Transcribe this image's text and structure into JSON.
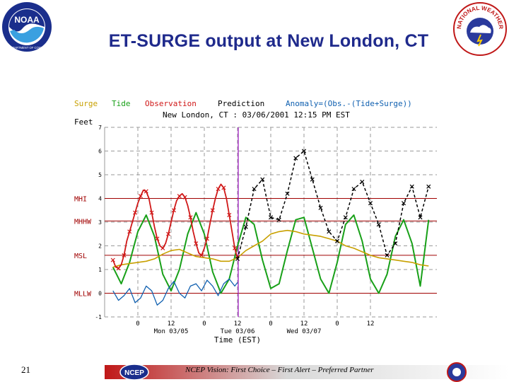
{
  "slide": {
    "title": "ET-SURGE output at New London, CT",
    "number": "21",
    "footer": "NCEP Vision: First Choice – First Alert – Preferred Partner",
    "logos": {
      "noaa": "NOAA",
      "noaa_ring": "U.S. DEPARTMENT OF COMMERCE",
      "nws_ring": "NATIONAL WEATHER SERVICE",
      "ncep": "NCEP"
    }
  },
  "colors": {
    "title": "#1f2a8c",
    "surge": "#c8a000",
    "tide": "#18a018",
    "observation": "#d01818",
    "prediction": "#000000",
    "anomaly": "#1060b0",
    "datum_line": "#a00000",
    "grid": "#9a9a9a",
    "marker": "#a020c0"
  },
  "chart_data": {
    "type": "line",
    "title": "New London, CT : 03/06/2001 12:15 PM EST",
    "ylabel": "Feet",
    "xlabel": "Time (EST)",
    "legend": [
      "Surge",
      "Tide",
      "Observation",
      "Prediction",
      "Anomaly=(Obs.-(Tide+Surge))"
    ],
    "legend_placement": "top",
    "ylim": [
      -1,
      7
    ],
    "yticks": [
      -1,
      0,
      1,
      2,
      3,
      4,
      5,
      6,
      7
    ],
    "xlim": [
      -12,
      108
    ],
    "x_units": "hours from 0000 EST 03/05/2001",
    "x_tick_values": [
      0,
      12,
      24,
      36,
      48,
      60,
      72,
      84
    ],
    "x_tick_labels": [
      "0",
      "12",
      "0",
      "12",
      "0",
      "12",
      "0",
      "12"
    ],
    "day_values": [
      12,
      36,
      60
    ],
    "day_labels": [
      "Mon 03/05",
      "Tue 03/06",
      "Wed 03/07"
    ],
    "grid": true,
    "datums": [
      {
        "label": "MHI",
        "y": 4.0
      },
      {
        "label": "MHHW",
        "y": 3.05
      },
      {
        "label": "MSL",
        "y": 1.6
      },
      {
        "label": "MLLW",
        "y": 0.0
      }
    ],
    "forecast_time": 36.25,
    "series": [
      {
        "name": "Tide",
        "x": [
          -9,
          -6,
          -3,
          0,
          3,
          6,
          9,
          12,
          15,
          18,
          21,
          24,
          27,
          30,
          33,
          36,
          39,
          42,
          45,
          48,
          51,
          54,
          57,
          60,
          63,
          66,
          69,
          72,
          75,
          78,
          81,
          84,
          87,
          90,
          93,
          96,
          99,
          102,
          105
        ],
        "y": [
          1.1,
          0.4,
          1.3,
          2.6,
          3.3,
          2.4,
          0.8,
          0.1,
          1.0,
          2.5,
          3.4,
          2.5,
          0.9,
          0.0,
          0.6,
          2.0,
          3.2,
          2.9,
          1.4,
          0.2,
          0.4,
          1.8,
          3.1,
          3.2,
          1.9,
          0.6,
          0.0,
          1.3,
          2.9,
          3.3,
          2.2,
          0.6,
          0.0,
          0.8,
          2.4,
          3.1,
          2.1,
          0.3,
          3.1
        ]
      },
      {
        "name": "Surge",
        "x": [
          -9,
          -6,
          -3,
          0,
          3,
          6,
          9,
          12,
          15,
          18,
          21,
          24,
          27,
          30,
          33,
          36,
          39,
          42,
          45,
          48,
          51,
          54,
          57,
          60,
          63,
          66,
          69,
          72,
          75,
          78,
          81,
          84,
          87,
          90,
          93,
          96,
          99,
          102,
          105
        ],
        "y": [
          1.1,
          1.2,
          1.25,
          1.3,
          1.35,
          1.45,
          1.65,
          1.8,
          1.85,
          1.7,
          1.55,
          1.5,
          1.45,
          1.35,
          1.35,
          1.5,
          1.8,
          2.0,
          2.2,
          2.5,
          2.6,
          2.65,
          2.6,
          2.5,
          2.45,
          2.4,
          2.3,
          2.2,
          2.0,
          1.9,
          1.75,
          1.6,
          1.5,
          1.45,
          1.4,
          1.35,
          1.3,
          1.2,
          1.15
        ]
      },
      {
        "name": "Anomaly=(Obs.-(Tide+Surge))",
        "x": [
          -9,
          -7,
          -5,
          -3,
          -1,
          1,
          3,
          5,
          7,
          9,
          11,
          13,
          15,
          17,
          19,
          21,
          23,
          25,
          27,
          29,
          31,
          33,
          35,
          36
        ],
        "y": [
          0.1,
          -0.3,
          -0.1,
          0.2,
          -0.4,
          -0.2,
          0.3,
          0.1,
          -0.5,
          -0.3,
          0.2,
          0.5,
          0.0,
          -0.2,
          0.3,
          0.4,
          0.1,
          0.55,
          0.3,
          -0.1,
          0.4,
          0.6,
          0.3,
          0.45
        ]
      },
      {
        "name": "Observation",
        "x": [
          -9,
          -8,
          -7,
          -6,
          -5,
          -4,
          -3,
          -2,
          -1,
          0,
          1,
          2,
          3,
          4,
          5,
          6,
          7,
          8,
          9,
          10,
          11,
          12,
          13,
          14,
          15,
          16,
          17,
          18,
          19,
          20,
          21,
          22,
          23,
          24,
          25,
          26,
          27,
          28,
          29,
          30,
          31,
          32,
          33,
          34,
          35,
          36
        ],
        "y": [
          1.4,
          1.1,
          1.05,
          1.2,
          1.6,
          2.2,
          2.6,
          3.0,
          3.4,
          3.8,
          4.1,
          4.35,
          4.3,
          4.0,
          3.4,
          2.8,
          2.3,
          2.0,
          1.9,
          2.1,
          2.5,
          3.0,
          3.5,
          3.9,
          4.1,
          4.2,
          4.05,
          3.7,
          3.2,
          2.6,
          2.1,
          1.7,
          1.6,
          1.9,
          2.3,
          2.9,
          3.5,
          4.0,
          4.4,
          4.6,
          4.45,
          4.0,
          3.3,
          2.6,
          1.9,
          1.45
        ]
      },
      {
        "name": "Prediction",
        "x": [
          36,
          39,
          42,
          45,
          48,
          51,
          54,
          57,
          60,
          63,
          66,
          69,
          72,
          75,
          78,
          81,
          84,
          87,
          90,
          93,
          96,
          99,
          102,
          105
        ],
        "y": [
          1.45,
          2.8,
          4.4,
          4.8,
          3.2,
          3.1,
          4.2,
          5.7,
          6.0,
          4.8,
          3.6,
          2.6,
          2.2,
          3.2,
          4.4,
          4.7,
          3.8,
          2.9,
          1.6,
          2.1,
          3.8,
          4.5,
          3.2,
          4.5
        ]
      }
    ]
  }
}
